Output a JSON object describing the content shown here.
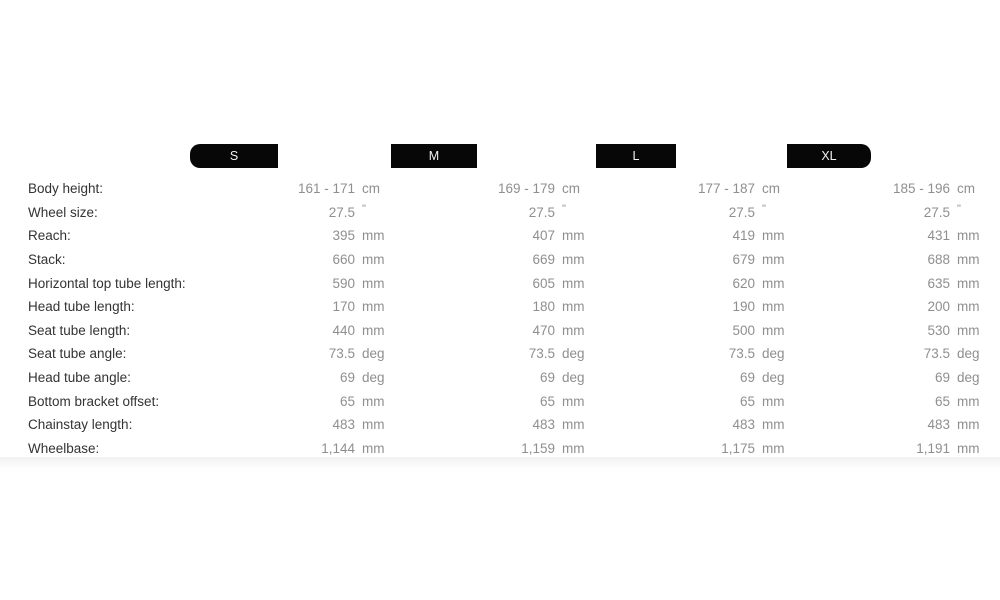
{
  "table": {
    "colors": {
      "badge_bg": "#070707",
      "badge_text": "#f2f2f2",
      "label_text": "#333333",
      "value_text": "#8f8f8f"
    },
    "sizes": [
      {
        "label": "S"
      },
      {
        "label": "M"
      },
      {
        "label": "L"
      },
      {
        "label": "XL"
      }
    ],
    "rows": [
      {
        "label": "Body height:",
        "unit": "cm",
        "values": [
          "161 - 171",
          "169 - 179",
          "177 - 187",
          "185 - 196"
        ]
      },
      {
        "label": "Wheel size:",
        "unit": "\"",
        "values": [
          "27.5",
          "27.5",
          "27.5",
          "27.5"
        ]
      },
      {
        "label": "Reach:",
        "unit": "mm",
        "values": [
          "395",
          "407",
          "419",
          "431"
        ]
      },
      {
        "label": "Stack:",
        "unit": "mm",
        "values": [
          "660",
          "669",
          "679",
          "688"
        ]
      },
      {
        "label": "Horizontal top tube length:",
        "unit": "mm",
        "values": [
          "590",
          "605",
          "620",
          "635"
        ]
      },
      {
        "label": "Head tube length:",
        "unit": "mm",
        "values": [
          "170",
          "180",
          "190",
          "200"
        ]
      },
      {
        "label": "Seat tube length:",
        "unit": "mm",
        "values": [
          "440",
          "470",
          "500",
          "530"
        ]
      },
      {
        "label": "Seat tube angle:",
        "unit": "deg",
        "values": [
          "73.5",
          "73.5",
          "73.5",
          "73.5"
        ]
      },
      {
        "label": "Head tube angle:",
        "unit": "deg",
        "values": [
          "69",
          "69",
          "69",
          "69"
        ]
      },
      {
        "label": "Bottom bracket offset:",
        "unit": "mm",
        "values": [
          "65",
          "65",
          "65",
          "65"
        ]
      },
      {
        "label": "Chainstay length:",
        "unit": "mm",
        "values": [
          "483",
          "483",
          "483",
          "483"
        ]
      },
      {
        "label": "Wheelbase:",
        "unit": "mm",
        "values": [
          "1,144",
          "1,159",
          "1,175",
          "1,191"
        ]
      }
    ]
  }
}
